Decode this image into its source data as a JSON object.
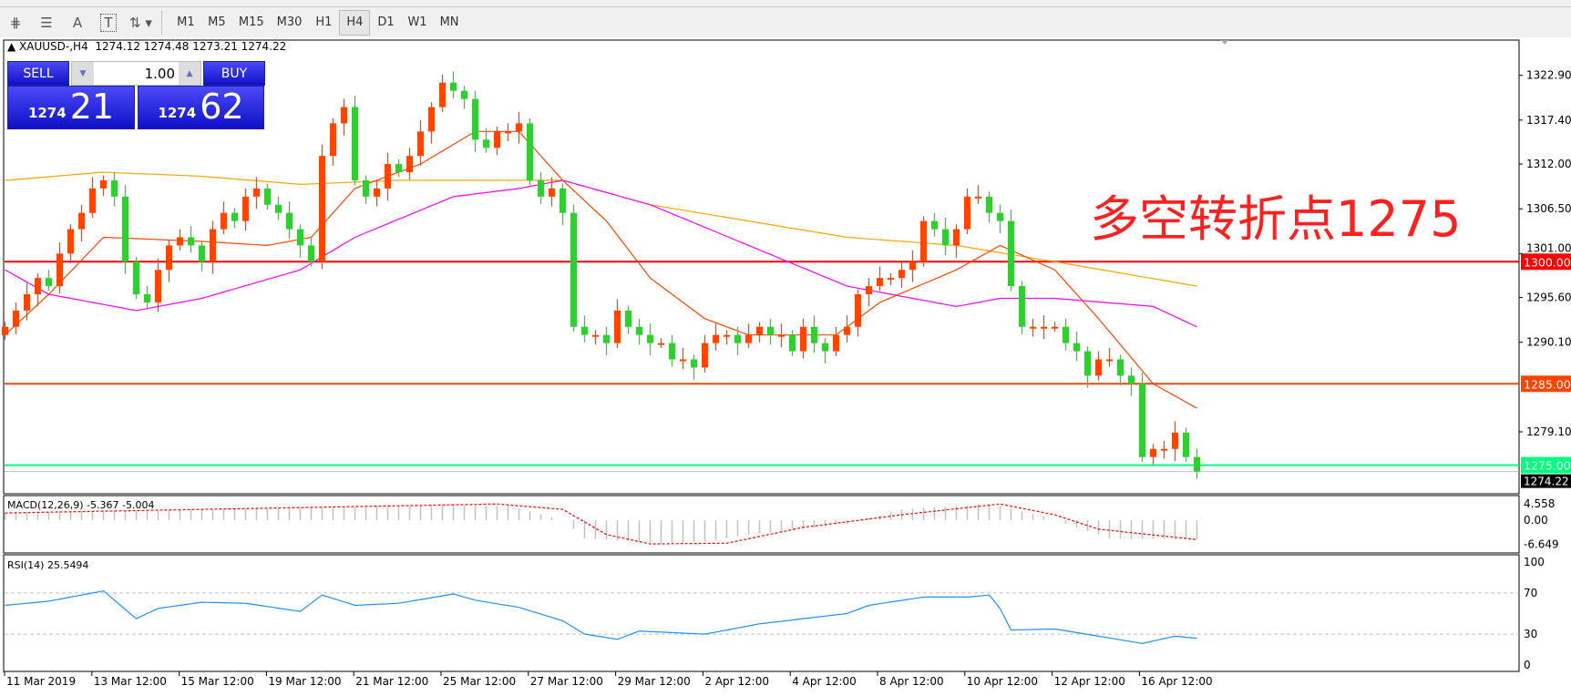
{
  "toolbar": {
    "tools": [
      "lines-icon",
      "fibo-icon",
      "text-icon",
      "label-icon",
      "arrows-icon"
    ],
    "text_tool": "A",
    "label_tool": "T",
    "timeframes": [
      "M1",
      "M5",
      "M15",
      "M30",
      "H1",
      "H4",
      "D1",
      "W1",
      "MN"
    ],
    "active_timeframe": "H4"
  },
  "header": {
    "symbol": "XAUUSD-,H4",
    "ohlc": "1274.12 1274.48 1273.21 1274.22"
  },
  "trade_panel": {
    "sell_label": "SELL",
    "buy_label": "BUY",
    "volume": "1.00",
    "sell_big": "1274",
    "sell_small": "21",
    "buy_big": "1274",
    "buy_small": "62"
  },
  "annotation": "多空转折点1275",
  "colors": {
    "bull": "#ff4500",
    "bear": "#32cd32",
    "ma_fast": "#ff4500",
    "ma_mid": "#ff00ff",
    "ma_slow": "#ffa500",
    "line_1300": "#ff0000",
    "line_1285": "#ff4500",
    "line_1275": "#00ff7f"
  },
  "chart_data": [
    {
      "type": "candlestick",
      "name": "XAUUSD-,H4",
      "ylim": [
        1271.5,
        1327.2
      ],
      "yticks": [
        "1322.90",
        "1317.40",
        "1312.00",
        "1306.50",
        "1301.00",
        "1295.60",
        "1290.10",
        "1279.10"
      ],
      "xticks": [
        "11 Mar 2019",
        "13 Mar 12:00",
        "15 Mar 12:00",
        "19 Mar 12:00",
        "21 Mar 12:00",
        "25 Mar 12:00",
        "27 Mar 12:00",
        "29 Mar 12:00",
        "2 Apr 12:00",
        "4 Apr 12:00",
        "8 Apr 12:00",
        "10 Apr 12:00",
        "12 Apr 12:00",
        "16 Apr 12:00"
      ],
      "close": [
        1292,
        1294,
        1296,
        1298,
        1297,
        1301,
        1304,
        1306,
        1309,
        1310,
        1308,
        1300,
        1296,
        1295,
        1299,
        1302,
        1303,
        1302,
        1300,
        1304,
        1306,
        1305,
        1308,
        1309,
        1307,
        1306,
        1304,
        1302,
        1300,
        1313,
        1317,
        1319,
        1310,
        1308,
        1309,
        1312,
        1311,
        1313,
        1316,
        1319,
        1322,
        1321,
        1320,
        1315,
        1314,
        1316,
        1316,
        1317,
        1310,
        1308,
        1309,
        1306,
        1292,
        1291,
        1291,
        1290,
        1294,
        1292,
        1291,
        1290,
        1290,
        1288,
        1288,
        1287,
        1290,
        1291,
        1291,
        1290,
        1291,
        1292,
        1291,
        1291,
        1289,
        1292,
        1290,
        1289,
        1291,
        1292,
        1296,
        1297,
        1298,
        1298,
        1299,
        1300,
        1305,
        1304,
        1302,
        1304,
        1308,
        1308,
        1306,
        1305,
        1297,
        1292,
        1292,
        1292,
        1292,
        1290,
        1289,
        1286,
        1288,
        1288,
        1286,
        1285,
        1276,
        1277,
        1277,
        1279,
        1276,
        1274.22
      ],
      "ma_fast": [
        [
          0,
          1291
        ],
        [
          4,
          1296
        ],
        [
          9,
          1303
        ],
        [
          18,
          1302.5
        ],
        [
          24,
          1302
        ],
        [
          28,
          1303
        ],
        [
          32,
          1309
        ],
        [
          38,
          1312
        ],
        [
          43,
          1316
        ],
        [
          47,
          1316
        ],
        [
          51,
          1310
        ],
        [
          55,
          1305
        ],
        [
          59,
          1298
        ],
        [
          64,
          1293
        ],
        [
          68,
          1291
        ],
        [
          76,
          1291
        ],
        [
          80,
          1295
        ],
        [
          87,
          1299
        ],
        [
          91,
          1302
        ],
        [
          96,
          1299
        ],
        [
          100,
          1293
        ],
        [
          105,
          1285
        ],
        [
          109,
          1282
        ]
      ],
      "ma_mid": [
        [
          0,
          1299
        ],
        [
          4,
          1296
        ],
        [
          12,
          1294
        ],
        [
          18,
          1295.5
        ],
        [
          27,
          1299
        ],
        [
          32,
          1303
        ],
        [
          41,
          1308
        ],
        [
          47,
          1309
        ],
        [
          51,
          1310
        ],
        [
          59,
          1307
        ],
        [
          68,
          1302
        ],
        [
          77,
          1297
        ],
        [
          87,
          1294.5
        ],
        [
          91,
          1295.5
        ],
        [
          96,
          1295.5
        ],
        [
          105,
          1294.5
        ],
        [
          109,
          1292
        ]
      ],
      "ma_slow": [
        [
          0,
          1310
        ],
        [
          9,
          1311
        ],
        [
          18,
          1310.5
        ],
        [
          27,
          1309.5
        ],
        [
          36,
          1310
        ],
        [
          45,
          1310
        ],
        [
          51,
          1310
        ],
        [
          59,
          1307
        ],
        [
          68,
          1305
        ],
        [
          77,
          1303
        ],
        [
          87,
          1302
        ],
        [
          96,
          1300
        ],
        [
          109,
          1297
        ]
      ],
      "hlines": [
        {
          "price": 1300,
          "label": "1300.00"
        },
        {
          "price": 1285,
          "label": "1285.00"
        },
        {
          "price": 1275,
          "label": "1275.00"
        }
      ],
      "current_price": "1274.22"
    },
    {
      "type": "bar+line",
      "name": "MACD(12,26,9)",
      "label": "MACD(12,26,9) -5.367 -5.004",
      "ylim": [
        -7.5,
        5.5
      ],
      "yticks": [
        "4.558",
        "0.00",
        "-6.649"
      ],
      "histogram": [
        [
          0,
          2
        ],
        [
          20,
          3
        ],
        [
          40,
          4
        ],
        [
          46,
          4
        ],
        [
          51,
          0
        ],
        [
          53,
          -5
        ],
        [
          60,
          -6.5
        ],
        [
          64,
          -6
        ],
        [
          68,
          -4
        ],
        [
          77,
          -1
        ],
        [
          82,
          3
        ],
        [
          90,
          4.5
        ],
        [
          95,
          1
        ],
        [
          99,
          -3
        ],
        [
          101,
          -5
        ],
        [
          109,
          -5.4
        ]
      ],
      "signal": [
        [
          0,
          2
        ],
        [
          27,
          3.5
        ],
        [
          45,
          4.5
        ],
        [
          51,
          3
        ],
        [
          55,
          -4
        ],
        [
          59,
          -6.6
        ],
        [
          66,
          -6.4
        ],
        [
          73,
          -2
        ],
        [
          82,
          1.5
        ],
        [
          91,
          4.5
        ],
        [
          96,
          1.5
        ],
        [
          100,
          -2.5
        ],
        [
          109,
          -5.4
        ]
      ]
    },
    {
      "type": "line",
      "name": "RSI(14)",
      "label": "RSI(14) 25.5494",
      "ylim": [
        0,
        100
      ],
      "yticks": [
        "100",
        "70",
        "30",
        "0"
      ],
      "levels": [
        70,
        30
      ],
      "values": [
        [
          0,
          58
        ],
        [
          4,
          62
        ],
        [
          9,
          72
        ],
        [
          12,
          45
        ],
        [
          14,
          55
        ],
        [
          18,
          61
        ],
        [
          22,
          60
        ],
        [
          27,
          52
        ],
        [
          29,
          68
        ],
        [
          32,
          58
        ],
        [
          36,
          60
        ],
        [
          41,
          69
        ],
        [
          43,
          63
        ],
        [
          47,
          56
        ],
        [
          51,
          43
        ],
        [
          53,
          30
        ],
        [
          56,
          25
        ],
        [
          58,
          33
        ],
        [
          64,
          30
        ],
        [
          69,
          40
        ],
        [
          73,
          45
        ],
        [
          77,
          50
        ],
        [
          79,
          58
        ],
        [
          84,
          66
        ],
        [
          88,
          66
        ],
        [
          90,
          68
        ],
        [
          91,
          55
        ],
        [
          92,
          34
        ],
        [
          96,
          35
        ],
        [
          100,
          28
        ],
        [
          104,
          21
        ],
        [
          107,
          28
        ],
        [
          109,
          26
        ]
      ]
    }
  ]
}
